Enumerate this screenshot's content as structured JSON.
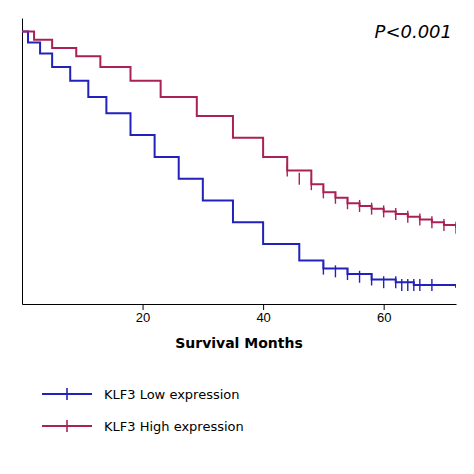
{
  "chart_data": {
    "type": "step",
    "xlabel": "Survival Months",
    "annotation": "P<0.001",
    "xlim": [
      0,
      72
    ],
    "ylim": [
      0.0,
      1.05
    ],
    "xticks": [
      20,
      40,
      60
    ],
    "yticks": [],
    "tick_labels": "x",
    "legend": "bottom",
    "series": [
      {
        "name": "KLF3 Low expression",
        "color": "#2222BB",
        "x": [
          0,
          1,
          3,
          5,
          8,
          11,
          14,
          18,
          22,
          26,
          30,
          35,
          40,
          46,
          50,
          54,
          58,
          62,
          65,
          68,
          72
        ],
        "values": [
          1.0,
          0.96,
          0.92,
          0.87,
          0.82,
          0.76,
          0.7,
          0.62,
          0.54,
          0.46,
          0.38,
          0.3,
          0.22,
          0.16,
          0.13,
          0.11,
          0.09,
          0.08,
          0.07,
          0.07,
          0.06
        ],
        "censor_x": [
          50,
          52,
          54,
          56,
          58,
          60,
          62,
          63,
          64,
          65,
          66,
          68
        ],
        "censor_values": [
          0.13,
          0.12,
          0.11,
          0.1,
          0.09,
          0.08,
          0.08,
          0.07,
          0.07,
          0.07,
          0.07,
          0.07
        ]
      },
      {
        "name": "KLF3 High expression",
        "color": "#AA2255",
        "x": [
          0,
          2,
          5,
          9,
          13,
          18,
          23,
          29,
          35,
          40,
          44,
          48,
          50,
          52,
          54,
          56,
          58,
          60,
          62,
          64,
          66,
          68,
          70,
          72
        ],
        "values": [
          1.0,
          0.97,
          0.94,
          0.91,
          0.87,
          0.82,
          0.76,
          0.69,
          0.61,
          0.54,
          0.49,
          0.44,
          0.41,
          0.39,
          0.37,
          0.36,
          0.35,
          0.34,
          0.33,
          0.32,
          0.31,
          0.3,
          0.29,
          0.28
        ],
        "censor_x": [
          44,
          46,
          48,
          50,
          52,
          54,
          56,
          58,
          60,
          62,
          64,
          66,
          68,
          70,
          72
        ],
        "censor_values": [
          0.49,
          0.46,
          0.44,
          0.41,
          0.39,
          0.37,
          0.36,
          0.35,
          0.34,
          0.33,
          0.32,
          0.31,
          0.3,
          0.29,
          0.28
        ]
      }
    ]
  }
}
